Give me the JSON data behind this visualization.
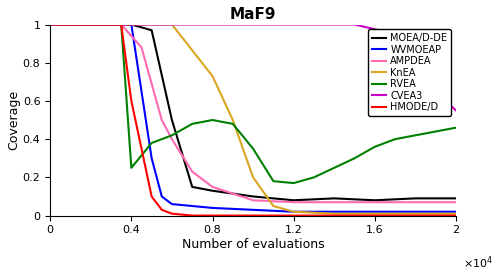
{
  "title": "MaF9",
  "xlabel": "Number of evaluations",
  "ylabel": "Coverage",
  "xlim": [
    0,
    20000
  ],
  "ylim": [
    0,
    1.0
  ],
  "series": {
    "MOEA/D-DE": {
      "color": "#000000",
      "x": [
        0,
        4000,
        5000,
        6000,
        7000,
        8000,
        10000,
        12000,
        14000,
        16000,
        18000,
        20000
      ],
      "y": [
        1.0,
        1.0,
        0.97,
        0.5,
        0.15,
        0.13,
        0.1,
        0.08,
        0.09,
        0.08,
        0.09,
        0.09
      ]
    },
    "WVMOEAP": {
      "color": "#0000FF",
      "x": [
        0,
        4000,
        5000,
        5500,
        6000,
        7000,
        8000,
        10000,
        12000,
        14000,
        16000,
        18000,
        20000
      ],
      "y": [
        1.0,
        1.0,
        0.3,
        0.1,
        0.06,
        0.05,
        0.04,
        0.03,
        0.02,
        0.02,
        0.02,
        0.02,
        0.02
      ]
    },
    "AMPDEA": {
      "color": "#FF69B4",
      "x": [
        0,
        3500,
        4500,
        5500,
        6000,
        7000,
        8000,
        10000,
        12000,
        14000,
        16000,
        18000,
        20000
      ],
      "y": [
        1.0,
        1.0,
        0.88,
        0.5,
        0.4,
        0.23,
        0.15,
        0.08,
        0.07,
        0.07,
        0.07,
        0.07,
        0.07
      ]
    },
    "KnEA": {
      "color": "#DAA520",
      "x": [
        0,
        4000,
        5000,
        6000,
        8000,
        9000,
        10000,
        11000,
        12000,
        14000,
        16000,
        18000,
        20000
      ],
      "y": [
        1.0,
        1.0,
        1.0,
        1.0,
        0.73,
        0.5,
        0.2,
        0.05,
        0.02,
        0.01,
        0.01,
        0.01,
        0.01
      ]
    },
    "RVEA": {
      "color": "#008000",
      "x": [
        0,
        3500,
        4000,
        5000,
        6000,
        7000,
        8000,
        9000,
        10000,
        11000,
        12000,
        13000,
        14000,
        15000,
        16000,
        17000,
        18000,
        19000,
        20000
      ],
      "y": [
        1.0,
        1.0,
        0.25,
        0.38,
        0.42,
        0.48,
        0.5,
        0.48,
        0.35,
        0.18,
        0.17,
        0.2,
        0.25,
        0.3,
        0.36,
        0.4,
        0.42,
        0.44,
        0.46
      ]
    },
    "CVEA3": {
      "color": "#CC00CC",
      "x": [
        0,
        3500,
        10000,
        15000,
        17000,
        18000,
        19000,
        20000
      ],
      "y": [
        1.0,
        1.0,
        1.0,
        1.0,
        0.95,
        0.8,
        0.65,
        0.55
      ]
    },
    "HMODE/D": {
      "color": "#FF0000",
      "x": [
        0,
        3500,
        4000,
        5000,
        5500,
        6000,
        7000,
        8000,
        20000
      ],
      "y": [
        1.0,
        1.0,
        0.6,
        0.1,
        0.03,
        0.01,
        0.0,
        0.0,
        0.0
      ]
    }
  }
}
